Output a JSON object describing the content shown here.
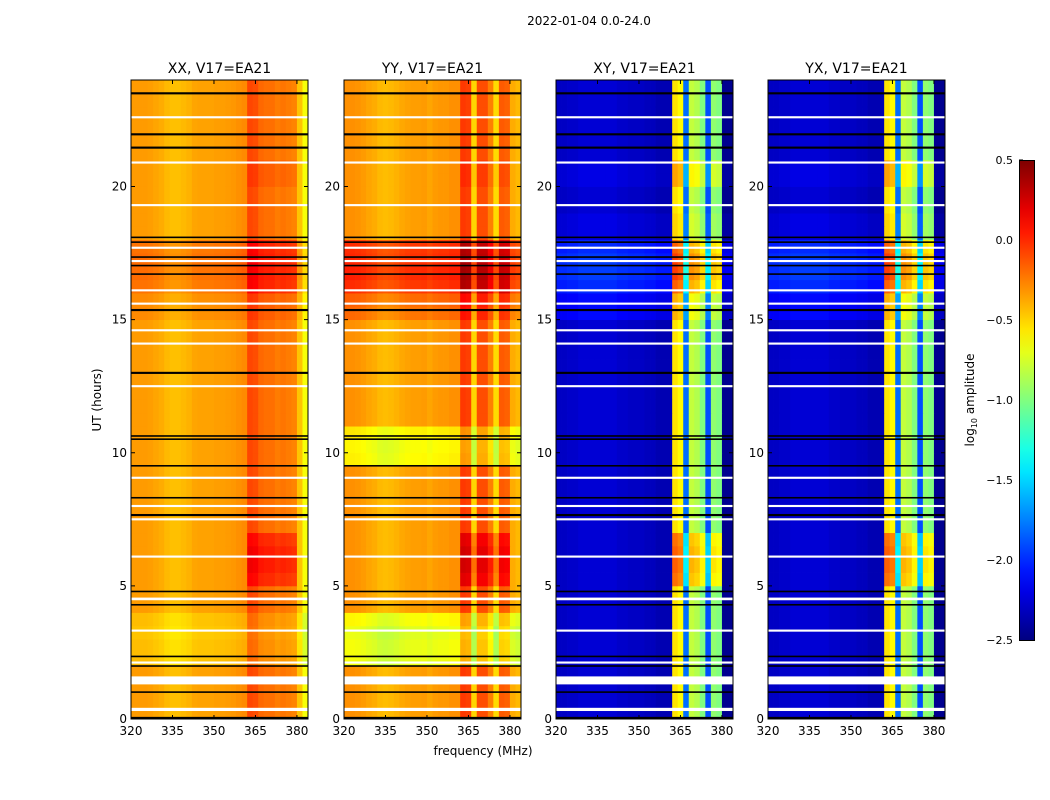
{
  "chart_data": {
    "type": "heatmap",
    "title": "2022-01-04 0.0-24.0",
    "xlabel": "frequency (MHz)",
    "ylabel": "UT (hours)",
    "xlim": [
      320,
      384
    ],
    "ylim": [
      0,
      24
    ],
    "xticks": [
      320,
      335,
      350,
      365,
      380
    ],
    "yticks": [
      0,
      5,
      10,
      15,
      20
    ],
    "freq_bin_mhz": 2,
    "time_bin_hours": 0.5,
    "colorbar": {
      "label": "log10 amplitude",
      "label_main": "log",
      "label_sub": "10",
      "label_rest": " amplitude",
      "range": [
        -2.5,
        0.5
      ],
      "ticks": [
        "0.5",
        "0.0",
        "−0.5",
        "−1.0",
        "−1.5",
        "−2.0",
        "−2.5"
      ],
      "tick_values": [
        0.5,
        0.0,
        -0.5,
        -1.0,
        -1.5,
        -2.0,
        -2.5
      ],
      "colormap": "jet"
    },
    "flags": {
      "white_ranges": [
        [
          0.3,
          0.42
        ],
        [
          1.3,
          1.6
        ],
        [
          2.08,
          2.16
        ],
        [
          3.28,
          3.36
        ],
        [
          4.46,
          4.56
        ],
        [
          6.06,
          6.14
        ],
        [
          7.46,
          7.54
        ],
        [
          7.96,
          8.04
        ],
        [
          9.02,
          9.1
        ],
        [
          12.46,
          12.54
        ],
        [
          14.06,
          14.14
        ],
        [
          14.56,
          14.64
        ],
        [
          15.56,
          15.64
        ],
        [
          16.06,
          16.14
        ],
        [
          17.16,
          17.24
        ],
        [
          17.66,
          17.74
        ],
        [
          19.26,
          19.34
        ],
        [
          20.86,
          20.94
        ],
        [
          22.56,
          22.64
        ]
      ],
      "black_ranges": [
        [
          0.0,
          0.08
        ],
        [
          0.98,
          1.04
        ],
        [
          1.96,
          2.02
        ],
        [
          2.32,
          2.38
        ],
        [
          4.26,
          4.32
        ],
        [
          4.76,
          4.82
        ],
        [
          7.62,
          7.7
        ],
        [
          8.28,
          8.34
        ],
        [
          9.48,
          9.54
        ],
        [
          10.48,
          10.54
        ],
        [
          10.6,
          10.66
        ],
        [
          12.96,
          13.04
        ],
        [
          15.32,
          15.4
        ],
        [
          16.68,
          16.74
        ],
        [
          17.0,
          17.06
        ],
        [
          17.32,
          17.38
        ],
        [
          17.88,
          17.94
        ],
        [
          18.06,
          18.12
        ],
        [
          21.42,
          21.5
        ],
        [
          21.92,
          22.0
        ],
        [
          23.46,
          23.54
        ]
      ]
    },
    "panels": [
      {
        "title": "XX, V17=EA21",
        "freq_profile": [
          -0.33,
          -0.33,
          -0.33,
          -0.34,
          -0.36,
          -0.38,
          -0.42,
          -0.44,
          -0.44,
          -0.42,
          -0.4,
          -0.36,
          -0.35,
          -0.35,
          -0.35,
          -0.34,
          -0.34,
          -0.33,
          -0.32,
          -0.3,
          -0.28,
          -0.08,
          -0.1,
          -0.18,
          -0.2,
          -0.2,
          -0.24,
          -0.22,
          -0.24,
          -0.26,
          -0.45,
          -0.65
        ],
        "time_offset": [
          0,
          0,
          0,
          0,
          -0.1,
          -0.1,
          -0.12,
          -0.1,
          0,
          0,
          0,
          0,
          0,
          0,
          0,
          0,
          0,
          0,
          0,
          0,
          0,
          0,
          0,
          0,
          0,
          0,
          0,
          0,
          0,
          0,
          0.05,
          0.05,
          0.12,
          0.14,
          0.14,
          0.12,
          0,
          0,
          0,
          0,
          0,
          0,
          0,
          0,
          0,
          0,
          0,
          0
        ],
        "band_offset": [
          0,
          0,
          0,
          0,
          0,
          0,
          0,
          0,
          0,
          0,
          0.2,
          0.25,
          0.25,
          0.2,
          0,
          0,
          0,
          0,
          0,
          0,
          0,
          0,
          0,
          0,
          0,
          0,
          0,
          0,
          0,
          0,
          0,
          0,
          0.1,
          0.1,
          0.1,
          0.1,
          0,
          0,
          0,
          0,
          0.05,
          0.05,
          0,
          0,
          0,
          0,
          0,
          0
        ]
      },
      {
        "title": "YY, V17=EA21",
        "freq_profile": [
          -0.3,
          -0.3,
          -0.31,
          -0.33,
          -0.36,
          -0.38,
          -0.42,
          -0.43,
          -0.42,
          -0.4,
          -0.37,
          -0.35,
          -0.34,
          -0.34,
          -0.33,
          -0.36,
          -0.33,
          -0.32,
          -0.32,
          -0.3,
          -0.3,
          -0.04,
          -0.06,
          -0.5,
          -0.1,
          -0.1,
          -0.25,
          -0.52,
          -0.14,
          -0.16,
          -0.38,
          -0.42
        ],
        "time_offset": [
          0,
          0,
          0,
          0,
          -0.35,
          -0.35,
          -0.38,
          -0.3,
          0,
          0,
          0,
          0,
          0,
          0,
          0,
          0,
          0,
          0,
          0,
          -0.28,
          -0.3,
          -0.25,
          0,
          0,
          0,
          0,
          0,
          0,
          0,
          0,
          0.12,
          0.15,
          0.3,
          0.34,
          0.32,
          0.3,
          0,
          0,
          0,
          0,
          0,
          0,
          0,
          0,
          0,
          0,
          0,
          0
        ],
        "band_offset": [
          0,
          0,
          0,
          0,
          0,
          0,
          0,
          0,
          0,
          0,
          0.25,
          0.3,
          0.3,
          0.25,
          0,
          0,
          0,
          0,
          0,
          0,
          0,
          0,
          0,
          0,
          0,
          0,
          0,
          0,
          0,
          0,
          0,
          0,
          0.1,
          0.1,
          0.1,
          0.1,
          0,
          0,
          0,
          0,
          0.05,
          0.05,
          0,
          0,
          0,
          0,
          0,
          0
        ]
      },
      {
        "title": "XY, V17=EA21",
        "freq_profile": [
          -2.3,
          -2.3,
          -2.28,
          -2.28,
          -2.25,
          -2.25,
          -2.25,
          -2.25,
          -2.25,
          -2.25,
          -2.25,
          -2.28,
          -2.28,
          -2.3,
          -2.3,
          -2.3,
          -2.32,
          -2.32,
          -2.35,
          -2.35,
          -2.35,
          -0.55,
          -0.62,
          -1.8,
          -0.8,
          -0.85,
          -1.0,
          -1.9,
          -0.95,
          -1.0,
          -2.45,
          -2.45
        ],
        "time_offset": [
          0,
          0,
          0,
          0,
          0,
          0,
          0,
          0,
          0,
          0,
          0,
          0,
          0,
          0,
          0,
          0,
          0,
          0,
          0,
          0,
          0,
          0,
          0,
          0,
          0,
          0,
          0,
          0,
          0,
          0,
          0.15,
          0.15,
          0.25,
          0.3,
          0.3,
          0.25,
          0.05,
          0.05,
          0,
          0,
          0.05,
          0.05,
          0,
          0,
          0,
          0,
          0,
          0
        ],
        "band_offset": [
          0,
          0,
          0,
          0,
          0,
          0,
          0,
          0,
          0,
          0,
          0.35,
          0.4,
          0.4,
          0.35,
          0,
          0,
          0,
          0,
          0,
          0,
          0,
          0,
          0,
          0,
          0,
          0,
          0,
          0,
          0,
          0,
          0,
          0,
          0.15,
          0.2,
          0.2,
          0.15,
          0,
          0,
          0,
          0,
          0.15,
          0.15,
          0,
          0,
          0,
          0,
          0,
          0
        ]
      },
      {
        "title": "YX, V17=EA21",
        "freq_profile": [
          -2.3,
          -2.3,
          -2.28,
          -2.28,
          -2.25,
          -2.25,
          -2.25,
          -2.25,
          -2.25,
          -2.25,
          -2.25,
          -2.28,
          -2.28,
          -2.3,
          -2.3,
          -2.3,
          -2.32,
          -2.32,
          -2.35,
          -2.35,
          -2.35,
          -0.55,
          -0.62,
          -1.8,
          -0.8,
          -0.85,
          -1.0,
          -1.9,
          -0.95,
          -1.0,
          -2.45,
          -2.45
        ],
        "time_offset": [
          0,
          0,
          0,
          0,
          0,
          0,
          0,
          0,
          0,
          0,
          0,
          0,
          0,
          0,
          0,
          0,
          0,
          0,
          0,
          0,
          0,
          0,
          0,
          0,
          0,
          0,
          0,
          0,
          0,
          0,
          0.15,
          0.15,
          0.25,
          0.3,
          0.3,
          0.25,
          0.05,
          0.05,
          0,
          0,
          0.05,
          0.05,
          0,
          0,
          0,
          0,
          0,
          0
        ],
        "band_offset": [
          0,
          0,
          0,
          0,
          0,
          0,
          0,
          0,
          0,
          0,
          0.35,
          0.4,
          0.4,
          0.35,
          0,
          0,
          0,
          0,
          0,
          0,
          0,
          0,
          0,
          0,
          0,
          0,
          0,
          0,
          0,
          0,
          0,
          0,
          0.15,
          0.2,
          0.2,
          0.15,
          0,
          0,
          0,
          0,
          0.15,
          0.15,
          0,
          0,
          0,
          0,
          0,
          0
        ]
      }
    ]
  }
}
